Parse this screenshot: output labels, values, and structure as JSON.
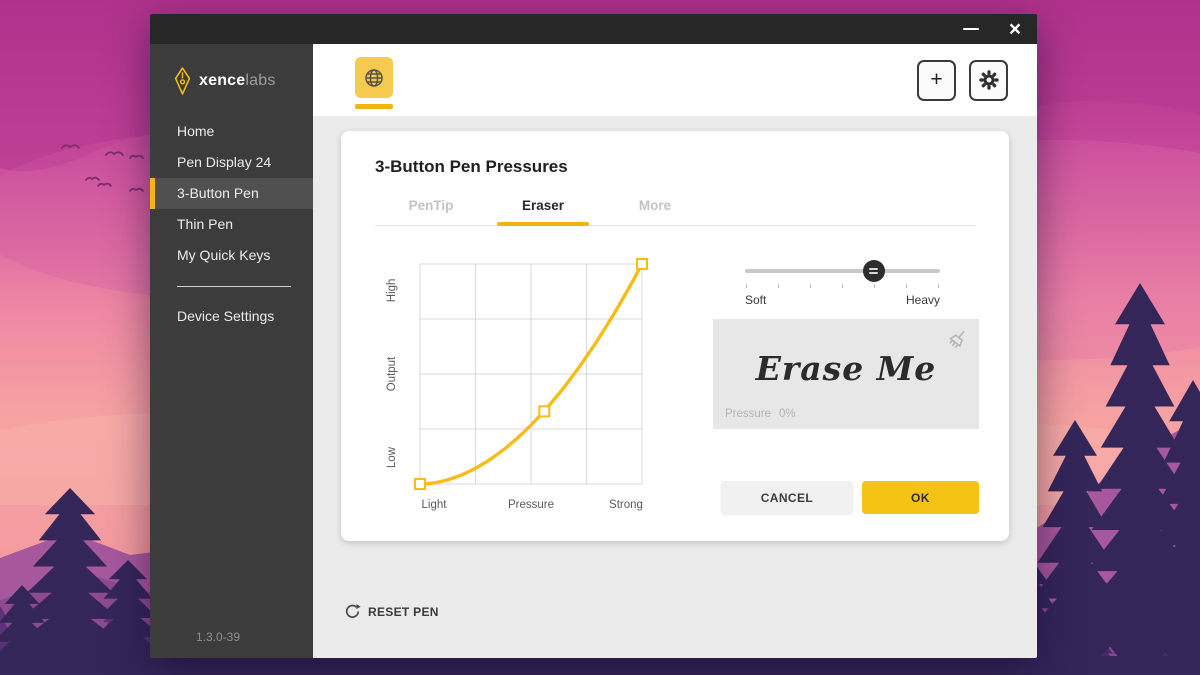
{
  "colors": {
    "accent": "#F1B512",
    "accent_light": "#F5CA4E",
    "ok_button": "#F5C313",
    "curve": "#F7BC16",
    "titlebar": "#272727",
    "sidebar": "#3C3C3C",
    "sidebar_selected": "#505050"
  },
  "window_controls": {
    "close_glyph": "×"
  },
  "sidebar": {
    "logo": {
      "brand_bold": "xence",
      "brand_light": "labs"
    },
    "items": [
      {
        "label": "Home",
        "selected": false
      },
      {
        "label": "Pen Display 24",
        "selected": false
      },
      {
        "label": "3-Button Pen",
        "selected": true
      },
      {
        "label": "Thin Pen",
        "selected": false
      },
      {
        "label": "My Quick Keys",
        "selected": false
      }
    ],
    "device_settings_label": "Device Settings",
    "version": "1.3.0-39"
  },
  "header": {
    "add_button_label": "+"
  },
  "panel": {
    "title": "3-Button Pen Pressures",
    "tabs": [
      {
        "label": "PenTip",
        "active": false
      },
      {
        "label": "Eraser",
        "active": true
      },
      {
        "label": "More",
        "active": false
      }
    ],
    "slider": {
      "left_label": "Soft",
      "right_label": "Heavy",
      "value_pct": 66,
      "tick_count": 7
    },
    "test_area": {
      "text": "Erase Me",
      "pressure_label": "Pressure",
      "pressure_value": "0%"
    },
    "cancel_label": "CANCEL",
    "ok_label": "OK"
  },
  "footer": {
    "reset_label": "RESET PEN"
  },
  "chart_data": {
    "type": "line",
    "title": "",
    "xlabel": "",
    "ylabel": "",
    "x_tick_labels": [
      "Light",
      "Pressure",
      "Strong"
    ],
    "y_tick_labels": [
      "Low",
      "Output",
      "High"
    ],
    "xlim": [
      0,
      1
    ],
    "ylim": [
      0,
      1
    ],
    "grid": {
      "columns": 4,
      "rows": 4,
      "visible": true
    },
    "curve_exponent": 1.9,
    "control_points": [
      {
        "x": 0,
        "y": 0
      },
      {
        "x": 0.56,
        "y": 0.33
      },
      {
        "x": 1,
        "y": 1
      }
    ],
    "line_color": "#F7BC16",
    "legend": "none"
  }
}
